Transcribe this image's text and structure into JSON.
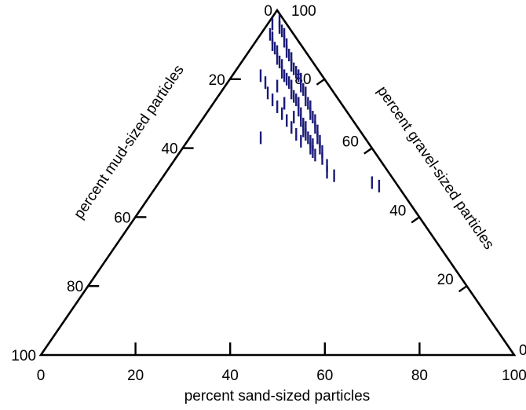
{
  "chart_data": {
    "type": "ternary-scatter",
    "axes": {
      "sand": {
        "title": "percent sand-sized particles",
        "ticks": [
          "0",
          "20",
          "40",
          "60",
          "80",
          "100"
        ]
      },
      "mud": {
        "title": "percent mud-sized particles",
        "ticks": [
          "0",
          "20",
          "40",
          "60",
          "80",
          "100"
        ]
      },
      "gravel": {
        "title": "percent gravel-sized particles",
        "ticks": [
          "0",
          "20",
          "40",
          "60",
          "80",
          "100"
        ]
      }
    },
    "marker": {
      "shape": "short vertical dash",
      "color": "#1b1b78"
    },
    "points": [
      {
        "sand": 2,
        "gravel": 97
      },
      {
        "sand": 1,
        "gravel": 96
      },
      {
        "sand": 3,
        "gravel": 95
      },
      {
        "sand": 2,
        "gravel": 93
      },
      {
        "sand": 4,
        "gravel": 94
      },
      {
        "sand": 3,
        "gravel": 92
      },
      {
        "sand": 5,
        "gravel": 93
      },
      {
        "sand": 4,
        "gravel": 90
      },
      {
        "sand": 6,
        "gravel": 91
      },
      {
        "sand": 5,
        "gravel": 89
      },
      {
        "sand": 7,
        "gravel": 90
      },
      {
        "sand": 6,
        "gravel": 88
      },
      {
        "sand": 8,
        "gravel": 88
      },
      {
        "sand": 7,
        "gravel": 86
      },
      {
        "sand": 9,
        "gravel": 87
      },
      {
        "sand": 8,
        "gravel": 85
      },
      {
        "sand": 10,
        "gravel": 86
      },
      {
        "sand": 9,
        "gravel": 84
      },
      {
        "sand": 11,
        "gravel": 84
      },
      {
        "sand": 10,
        "gravel": 82
      },
      {
        "sand": 12,
        "gravel": 83
      },
      {
        "sand": 11,
        "gravel": 81
      },
      {
        "sand": 13,
        "gravel": 82
      },
      {
        "sand": 12,
        "gravel": 80
      },
      {
        "sand": 14,
        "gravel": 81
      },
      {
        "sand": 13,
        "gravel": 79
      },
      {
        "sand": 15,
        "gravel": 80
      },
      {
        "sand": 14,
        "gravel": 78
      },
      {
        "sand": 16,
        "gravel": 78
      },
      {
        "sand": 15,
        "gravel": 76
      },
      {
        "sand": 17,
        "gravel": 77
      },
      {
        "sand": 16,
        "gravel": 75
      },
      {
        "sand": 18,
        "gravel": 76
      },
      {
        "sand": 17,
        "gravel": 74
      },
      {
        "sand": 19,
        "gravel": 74
      },
      {
        "sand": 18,
        "gravel": 73
      },
      {
        "sand": 20,
        "gravel": 73
      },
      {
        "sand": 19,
        "gravel": 71
      },
      {
        "sand": 21,
        "gravel": 72
      },
      {
        "sand": 20,
        "gravel": 70
      },
      {
        "sand": 22,
        "gravel": 70
      },
      {
        "sand": 21,
        "gravel": 68
      },
      {
        "sand": 23,
        "gravel": 69
      },
      {
        "sand": 22,
        "gravel": 67
      },
      {
        "sand": 24,
        "gravel": 68
      },
      {
        "sand": 23,
        "gravel": 65
      },
      {
        "sand": 25,
        "gravel": 66
      },
      {
        "sand": 24,
        "gravel": 64
      },
      {
        "sand": 26,
        "gravel": 65
      },
      {
        "sand": 25,
        "gravel": 63
      },
      {
        "sand": 27,
        "gravel": 63
      },
      {
        "sand": 26,
        "gravel": 62
      },
      {
        "sand": 28,
        "gravel": 62
      },
      {
        "sand": 27,
        "gravel": 60
      },
      {
        "sand": 29,
        "gravel": 60
      },
      {
        "sand": 28,
        "gravel": 59
      },
      {
        "sand": 30,
        "gravel": 59
      },
      {
        "sand": 6,
        "gravel": 81
      },
      {
        "sand": 8,
        "gravel": 79
      },
      {
        "sand": 10,
        "gravel": 76
      },
      {
        "sand": 12,
        "gravel": 74
      },
      {
        "sand": 14,
        "gravel": 72
      },
      {
        "sand": 16,
        "gravel": 70
      },
      {
        "sand": 18,
        "gravel": 68
      },
      {
        "sand": 20,
        "gravel": 66
      },
      {
        "sand": 22,
        "gravel": 64
      },
      {
        "sand": 24,
        "gravel": 62
      },
      {
        "sand": 11,
        "gravel": 78
      },
      {
        "sand": 15,
        "gravel": 73
      },
      {
        "sand": 19,
        "gravel": 69
      },
      {
        "sand": 23,
        "gravel": 66
      },
      {
        "sand": 27,
        "gravel": 61
      },
      {
        "sand": 29,
        "gravel": 58
      },
      {
        "sand": 31,
        "gravel": 57
      },
      {
        "sand": 33,
        "gravel": 55
      },
      {
        "sand": 34,
        "gravel": 53
      },
      {
        "sand": 36,
        "gravel": 52
      },
      {
        "sand": 45,
        "gravel": 50
      },
      {
        "sand": 47,
        "gravel": 49
      },
      {
        "sand": 15,
        "gravel": 63
      }
    ]
  }
}
